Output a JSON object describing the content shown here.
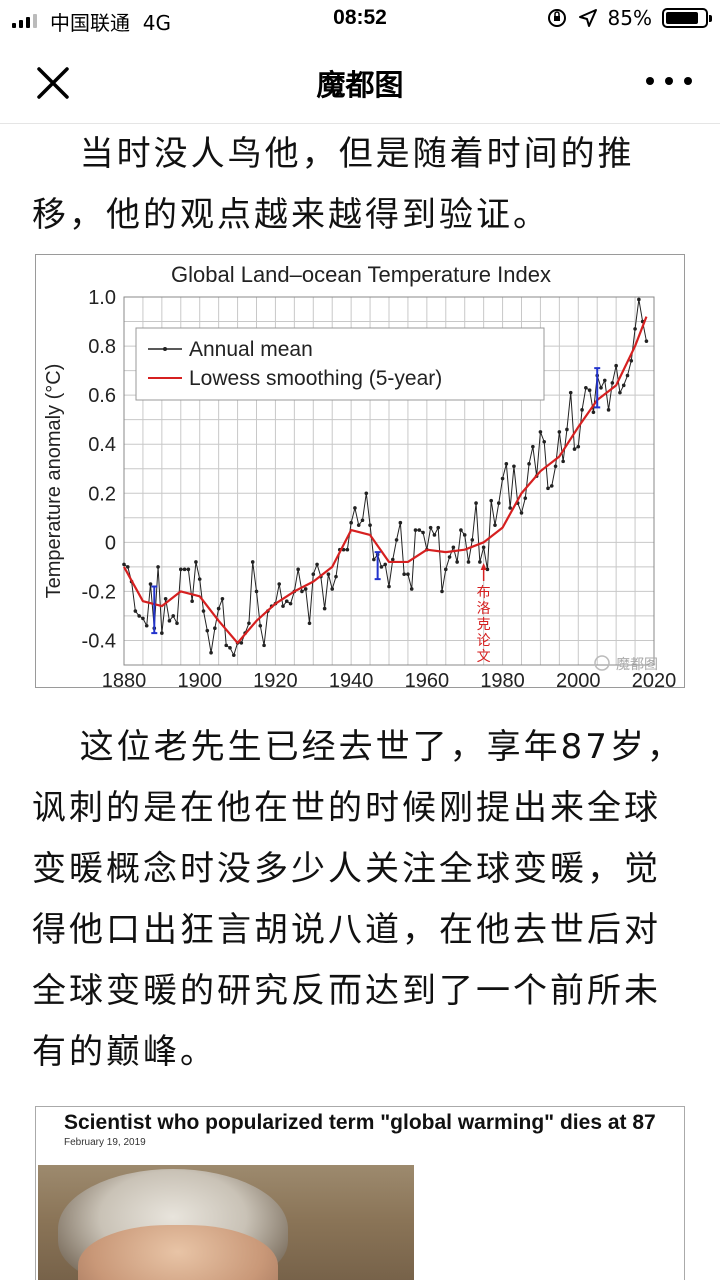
{
  "status_bar": {
    "carrier": "中国联通",
    "network": "4G",
    "time": "08:52",
    "battery_percent": "85%",
    "battery_level": 0.85
  },
  "nav": {
    "title": "魔都图",
    "close_icon": "close-icon",
    "more_icon": "more-icon"
  },
  "article": {
    "paragraph1": "当时没人鸟他，但是随着时间的推移，他的观点越来越得到验证。",
    "paragraph2": "这位老先生已经去世了，享年87岁，讽刺的是在他在世的时候刚提出来全球变暖概念时没多少人关注全球变暖，觉得他口出狂言胡说八道，在他去世后对全球变暖的研究反而达到了一个前所未有的巅峰。"
  },
  "chart_data": {
    "type": "line",
    "title": "Global Land–ocean Temperature Index",
    "xlabel": "",
    "ylabel": "Temperature anomaly (°C)",
    "xlim": [
      1880,
      2020
    ],
    "ylim": [
      -0.5,
      1.0
    ],
    "x_ticks": [
      "1880",
      "1900",
      "1920",
      "1940",
      "1960",
      "1980",
      "2000",
      "2020"
    ],
    "y_ticks": [
      "-0.4",
      "-0.2",
      "0",
      "0.2",
      "0.4",
      "0.6",
      "0.8",
      "1.0"
    ],
    "grid": true,
    "legend_position": "top-left",
    "annotation": "布洛克论文",
    "annotation_x": 1975,
    "watermark": "魔都图",
    "series": [
      {
        "name": "Annual mean",
        "color": "#222222",
        "x": [
          1880,
          1881,
          1882,
          1883,
          1884,
          1885,
          1886,
          1887,
          1888,
          1889,
          1890,
          1891,
          1892,
          1893,
          1894,
          1895,
          1896,
          1897,
          1898,
          1899,
          1900,
          1901,
          1902,
          1903,
          1904,
          1905,
          1906,
          1907,
          1908,
          1909,
          1910,
          1911,
          1912,
          1913,
          1914,
          1915,
          1916,
          1917,
          1918,
          1919,
          1920,
          1921,
          1922,
          1923,
          1924,
          1925,
          1926,
          1927,
          1928,
          1929,
          1930,
          1931,
          1932,
          1933,
          1934,
          1935,
          1936,
          1937,
          1938,
          1939,
          1940,
          1941,
          1942,
          1943,
          1944,
          1945,
          1946,
          1947,
          1948,
          1949,
          1950,
          1951,
          1952,
          1953,
          1954,
          1955,
          1956,
          1957,
          1958,
          1959,
          1960,
          1961,
          1962,
          1963,
          1964,
          1965,
          1966,
          1967,
          1968,
          1969,
          1970,
          1971,
          1972,
          1973,
          1974,
          1975,
          1976,
          1977,
          1978,
          1979,
          1980,
          1981,
          1982,
          1983,
          1984,
          1985,
          1986,
          1987,
          1988,
          1989,
          1990,
          1991,
          1992,
          1993,
          1994,
          1995,
          1996,
          1997,
          1998,
          1999,
          2000,
          2001,
          2002,
          2003,
          2004,
          2005,
          2006,
          2007,
          2008,
          2009,
          2010,
          2011,
          2012,
          2013,
          2014,
          2015,
          2016,
          2017,
          2018
        ],
        "values": [
          -0.09,
          -0.1,
          -0.16,
          -0.28,
          -0.3,
          -0.31,
          -0.34,
          -0.17,
          -0.35,
          -0.1,
          -0.37,
          -0.23,
          -0.32,
          -0.3,
          -0.33,
          -0.11,
          -0.11,
          -0.11,
          -0.24,
          -0.08,
          -0.15,
          -0.28,
          -0.36,
          -0.45,
          -0.35,
          -0.27,
          -0.23,
          -0.42,
          -0.43,
          -0.46,
          -0.41,
          -0.41,
          -0.37,
          -0.33,
          -0.08,
          -0.2,
          -0.34,
          -0.42,
          -0.28,
          -0.26,
          -0.25,
          -0.17,
          -0.26,
          -0.24,
          -0.25,
          -0.2,
          -0.11,
          -0.2,
          -0.19,
          -0.33,
          -0.13,
          -0.09,
          -0.14,
          -0.27,
          -0.13,
          -0.19,
          -0.14,
          -0.03,
          -0.03,
          -0.03,
          0.08,
          0.14,
          0.07,
          0.09,
          0.2,
          0.07,
          -0.07,
          -0.05,
          -0.1,
          -0.09,
          -0.18,
          -0.07,
          0.01,
          0.08,
          -0.13,
          -0.13,
          -0.19,
          0.05,
          0.05,
          0.04,
          -0.03,
          0.06,
          0.03,
          0.06,
          -0.2,
          -0.11,
          -0.06,
          -0.02,
          -0.08,
          0.05,
          0.03,
          -0.08,
          0.01,
          0.16,
          -0.08,
          -0.02,
          -0.11,
          0.17,
          0.07,
          0.16,
          0.26,
          0.32,
          0.14,
          0.31,
          0.16,
          0.12,
          0.18,
          0.32,
          0.39,
          0.27,
          0.45,
          0.41,
          0.22,
          0.23,
          0.31,
          0.45,
          0.33,
          0.46,
          0.61,
          0.38,
          0.39,
          0.54,
          0.63,
          0.62,
          0.53,
          0.68,
          0.63,
          0.66,
          0.54,
          0.65,
          0.72,
          0.61,
          0.64,
          0.68,
          0.74,
          0.87,
          0.99,
          0.9,
          0.82
        ]
      },
      {
        "name": "Lowess smoothing (5-year)",
        "color": "#d62020",
        "x": [
          1880,
          1885,
          1890,
          1895,
          1900,
          1905,
          1910,
          1915,
          1920,
          1925,
          1930,
          1935,
          1940,
          1945,
          1950,
          1955,
          1960,
          1965,
          1970,
          1975,
          1980,
          1985,
          1990,
          1995,
          2000,
          2005,
          2010,
          2015,
          2018
        ],
        "values": [
          -0.1,
          -0.24,
          -0.26,
          -0.2,
          -0.22,
          -0.32,
          -0.41,
          -0.32,
          -0.25,
          -0.2,
          -0.16,
          -0.1,
          0.05,
          0.03,
          -0.08,
          -0.08,
          -0.03,
          -0.04,
          -0.03,
          0.0,
          0.06,
          0.2,
          0.29,
          0.35,
          0.47,
          0.58,
          0.64,
          0.8,
          0.92
        ]
      }
    ],
    "uncertainty_bars": [
      {
        "x": 1888,
        "low": -0.37,
        "high": -0.18
      },
      {
        "x": 1947,
        "low": -0.15,
        "high": -0.04
      },
      {
        "x": 2005,
        "low": 0.55,
        "high": 0.71
      }
    ]
  },
  "news_image": {
    "headline": "Scientist who popularized term \"global warming\" dies at 87",
    "date": "February 19, 2019"
  }
}
